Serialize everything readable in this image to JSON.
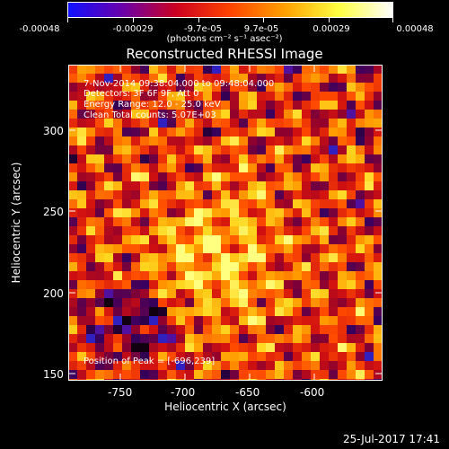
{
  "colorbar": {
    "ticks": [
      "-0.00048",
      "-0.00029",
      "-9.7e-05",
      "9.7e-05",
      "0.00029",
      "0.00048"
    ],
    "units": "(photons cm⁻² s⁻¹ asec⁻²)",
    "colors": [
      "#1010ff",
      "#6a00aa",
      "#cc0020",
      "#ff4400",
      "#ffa000",
      "#ffff40",
      "#ffffff"
    ]
  },
  "title": "Reconstructed RHESSI Image",
  "info": {
    "time_range": "7-Nov-2014 09:38:04.000 to 09:48:04.000",
    "detectors": "Detectors: 3F 6F 9F, Att 0",
    "energy": "Energy Range: 12.0 - 25.0 keV",
    "algorithm": "Clean    Total counts: 5.07E+03"
  },
  "peak_label": "Position of Peak = [-696,239]",
  "axes": {
    "xlabel": "Heliocentric X (arcsec)",
    "ylabel": "Heliocentric Y (arcsec)",
    "xticks": [
      "-750",
      "-700",
      "-650",
      "-600"
    ],
    "yticks": [
      "300",
      "250",
      "200",
      "150"
    ]
  },
  "datestamp": "25-Jul-2017 17:41"
}
